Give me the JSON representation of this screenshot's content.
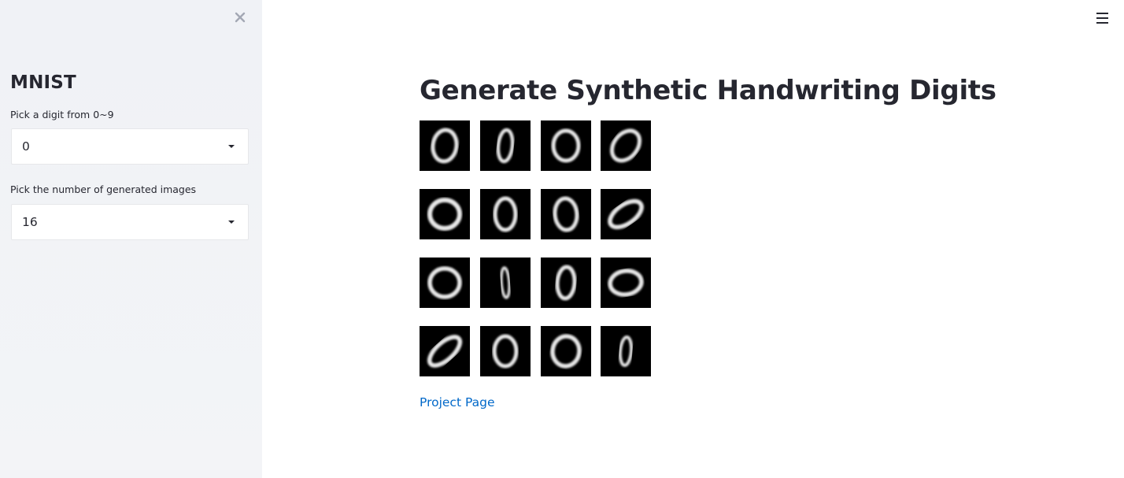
{
  "sidebar": {
    "close_icon": "close-icon",
    "title": "MNIST",
    "digit_select": {
      "label": "Pick a digit from 0~9",
      "value": "0"
    },
    "count_select": {
      "label": "Pick the number of generated images",
      "value": "16"
    }
  },
  "header": {
    "menu_icon": "hamburger-menu-icon"
  },
  "main": {
    "title": "Generate Synthetic Handwriting Digits",
    "generated_images": [
      {
        "digit": "0"
      },
      {
        "digit": "0"
      },
      {
        "digit": "0"
      },
      {
        "digit": "0"
      },
      {
        "digit": "0"
      },
      {
        "digit": "0"
      },
      {
        "digit": "0"
      },
      {
        "digit": "0"
      },
      {
        "digit": "0"
      },
      {
        "digit": "0"
      },
      {
        "digit": "0"
      },
      {
        "digit": "0"
      },
      {
        "digit": "0"
      },
      {
        "digit": "0"
      },
      {
        "digit": "0"
      },
      {
        "digit": "0"
      }
    ],
    "link_text": "Project Page"
  },
  "colors": {
    "sidebar_bg": "#f0f2f6",
    "text": "#262730",
    "link": "#0068c9",
    "image_bg": "#000000"
  }
}
